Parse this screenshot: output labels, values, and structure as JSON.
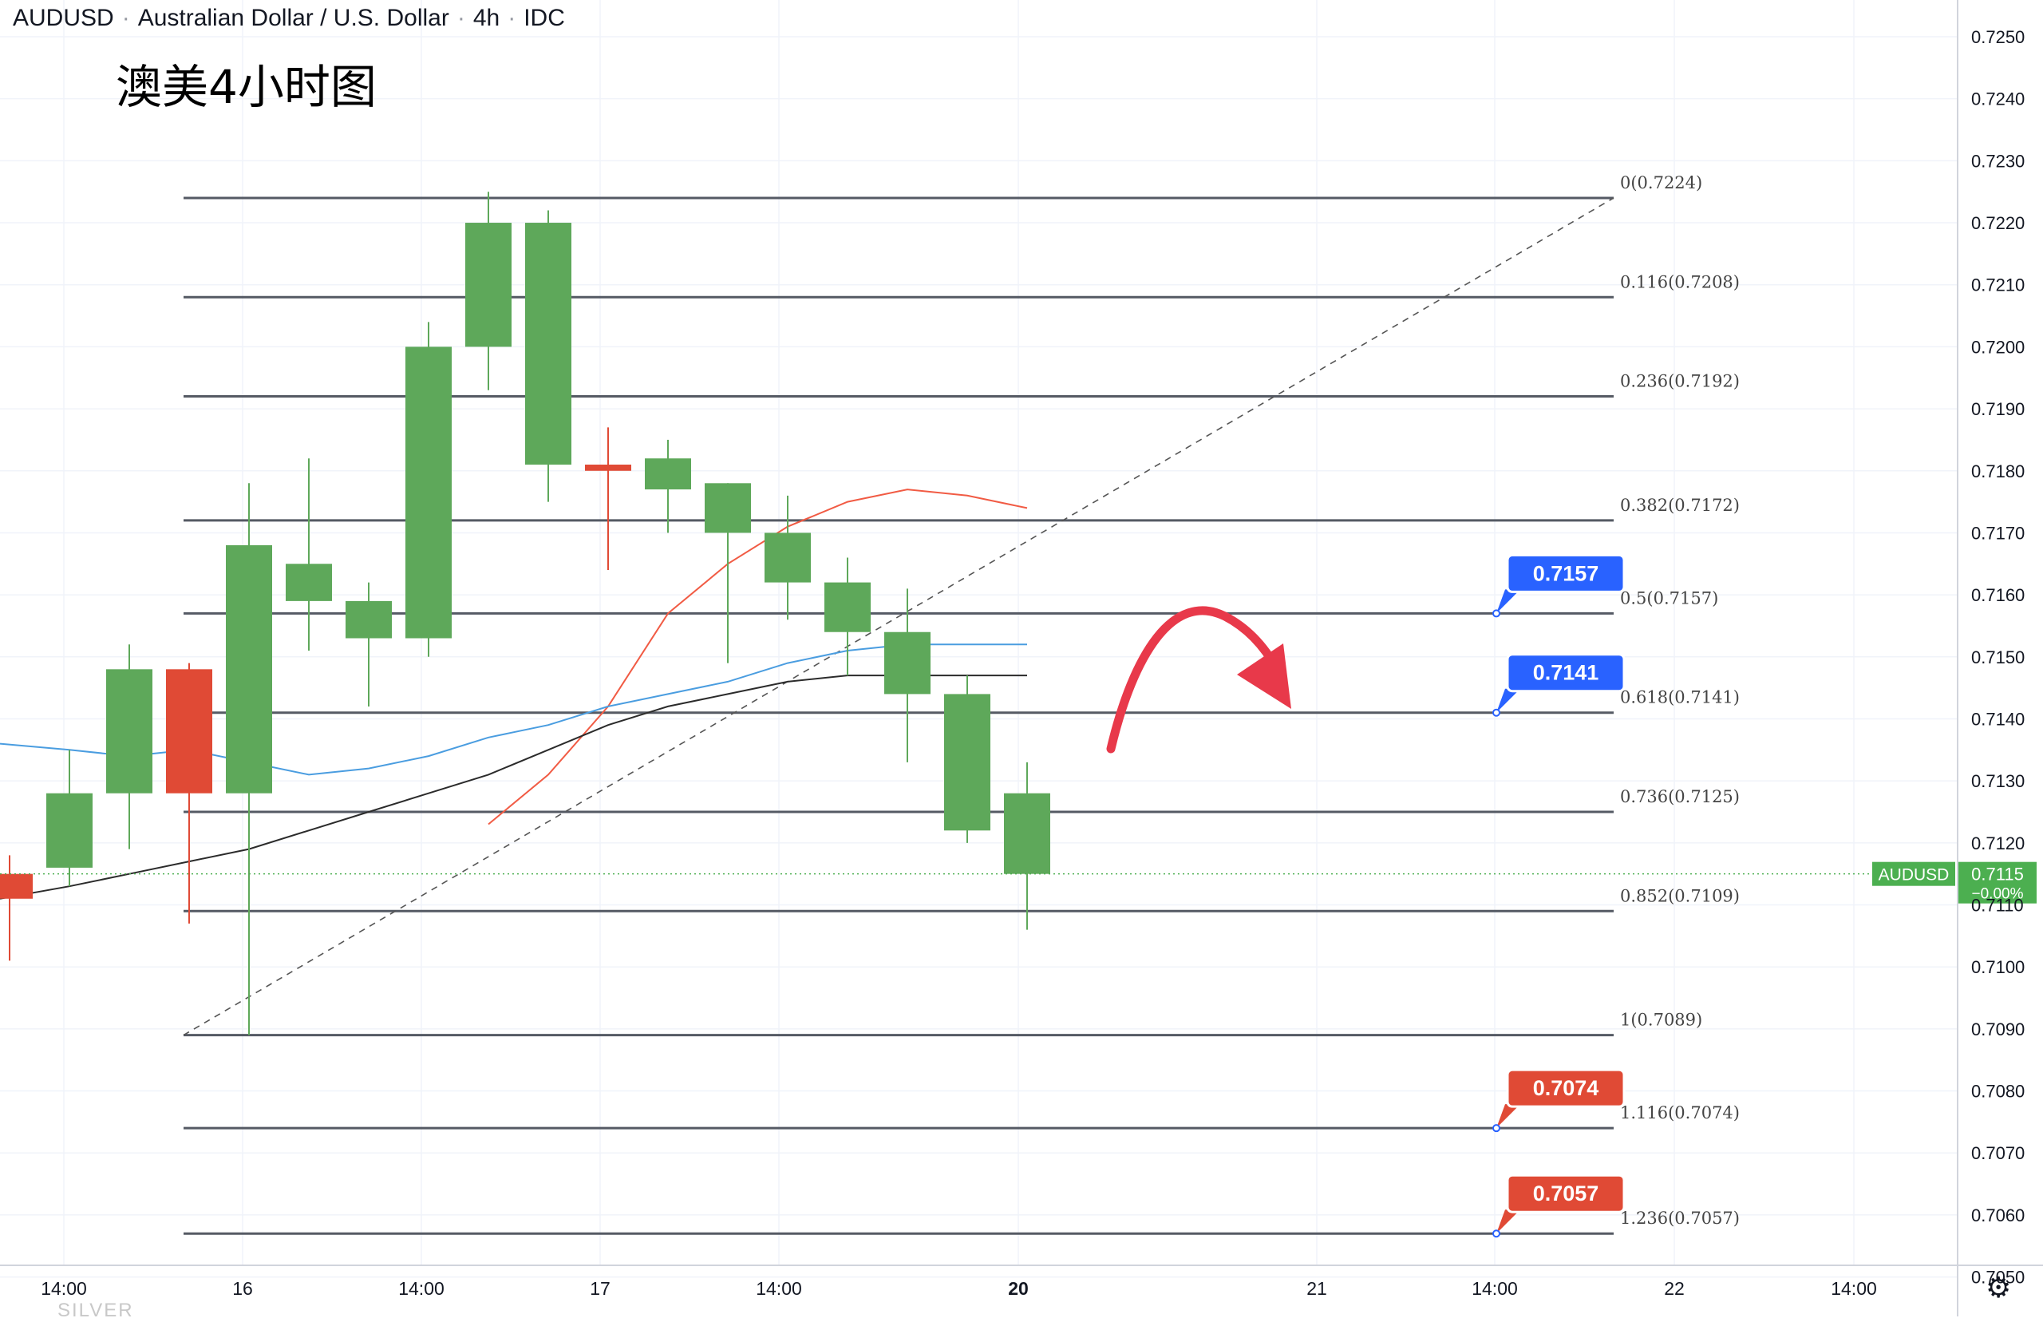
{
  "header": {
    "symbol": "AUDUSD",
    "name": "Australian Dollar / U.S. Dollar",
    "timeframe": "4h",
    "source": "IDC"
  },
  "annotation_text": "澳美4小时图",
  "watermark": "SILVER",
  "settings_icon": "gear-icon",
  "chart_data": {
    "type": "candlestick",
    "title": "AUDUSD · Australian Dollar / U.S. Dollar · 4h · IDC",
    "ylim": [
      0.7048,
      0.7253
    ],
    "y_ticks": [
      "0.7250",
      "0.7240",
      "0.7230",
      "0.7220",
      "0.7210",
      "0.7200",
      "0.7190",
      "0.7180",
      "0.7170",
      "0.7160",
      "0.7150",
      "0.7140",
      "0.7130",
      "0.7120",
      "0.7110",
      "0.7100",
      "0.7090",
      "0.7080",
      "0.7070",
      "0.7060",
      "0.7050"
    ],
    "x_ticks": [
      "14:00",
      "16",
      "14:00",
      "17",
      "14:00",
      "20",
      "21",
      "14:00",
      "22",
      "14:00"
    ],
    "bold_x_ticks": [
      "20"
    ],
    "candles": [
      {
        "o": 0.7115,
        "h": 0.7118,
        "l": 0.7101,
        "c": 0.7111
      },
      {
        "o": 0.7116,
        "h": 0.7135,
        "l": 0.7113,
        "c": 0.7128
      },
      {
        "o": 0.7128,
        "h": 0.7152,
        "l": 0.7119,
        "c": 0.7148
      },
      {
        "o": 0.7148,
        "h": 0.7149,
        "l": 0.7107,
        "c": 0.7128
      },
      {
        "o": 0.7128,
        "h": 0.7178,
        "l": 0.7089,
        "c": 0.7168
      },
      {
        "o": 0.7159,
        "h": 0.7182,
        "l": 0.7151,
        "c": 0.7165
      },
      {
        "o": 0.7153,
        "h": 0.7162,
        "l": 0.7142,
        "c": 0.7159
      },
      {
        "o": 0.7153,
        "h": 0.7204,
        "l": 0.715,
        "c": 0.72
      },
      {
        "o": 0.72,
        "h": 0.7225,
        "l": 0.7193,
        "c": 0.722
      },
      {
        "o": 0.7181,
        "h": 0.7222,
        "l": 0.7175,
        "c": 0.722
      },
      {
        "o": 0.7181,
        "h": 0.7187,
        "l": 0.7164,
        "c": 0.718
      },
      {
        "o": 0.7177,
        "h": 0.7185,
        "l": 0.717,
        "c": 0.7182
      },
      {
        "o": 0.717,
        "h": 0.7178,
        "l": 0.7149,
        "c": 0.7178
      },
      {
        "o": 0.7162,
        "h": 0.7176,
        "l": 0.7156,
        "c": 0.717
      },
      {
        "o": 0.7154,
        "h": 0.7166,
        "l": 0.7147,
        "c": 0.7162
      },
      {
        "o": 0.7144,
        "h": 0.7161,
        "l": 0.7133,
        "c": 0.7154
      },
      {
        "o": 0.7122,
        "h": 0.7147,
        "l": 0.712,
        "c": 0.7144
      },
      {
        "o": 0.7115,
        "h": 0.7133,
        "l": 0.7106,
        "c": 0.7128
      }
    ],
    "ma_lines": [
      {
        "color": "#f15b44",
        "values": [
          null,
          null,
          null,
          null,
          null,
          null,
          null,
          null,
          0.7123,
          0.7131,
          0.7142,
          0.7157,
          0.7165,
          0.7171,
          0.7175,
          0.7177,
          0.7176,
          0.7174
        ]
      },
      {
        "color": "#4a9de0",
        "values": [
          0.7136,
          0.7135,
          0.7134,
          0.7135,
          0.7133,
          0.7131,
          0.7132,
          0.7134,
          0.7137,
          0.7139,
          0.7142,
          0.7144,
          0.7146,
          0.7149,
          0.7151,
          0.7152,
          0.7152,
          0.7152
        ]
      },
      {
        "color": "#2b2b2b",
        "values": [
          0.7111,
          0.7113,
          0.7115,
          0.7117,
          0.7119,
          0.7122,
          0.7125,
          0.7128,
          0.7131,
          0.7135,
          0.7139,
          0.7142,
          0.7144,
          0.7146,
          0.7147,
          0.7147,
          0.7147,
          0.7147
        ]
      }
    ],
    "fibonacci": [
      {
        "label": "0(0.7224)",
        "price": 0.7224
      },
      {
        "label": "0.116(0.7208)",
        "price": 0.7208
      },
      {
        "label": "0.236(0.7192)",
        "price": 0.7192
      },
      {
        "label": "0.382(0.7172)",
        "price": 0.7172
      },
      {
        "label": "0.5(0.7157)",
        "price": 0.7157
      },
      {
        "label": "0.618(0.7141)",
        "price": 0.7141
      },
      {
        "label": "0.736(0.7125)",
        "price": 0.7125
      },
      {
        "label": "0.852(0.7109)",
        "price": 0.7109
      },
      {
        "label": "1(0.7089)",
        "price": 0.7089
      },
      {
        "label": "1.116(0.7074)",
        "price": 0.7074
      },
      {
        "label": "1.236(0.7057)",
        "price": 0.7057
      }
    ],
    "price_callouts": [
      {
        "text": "0.7157",
        "price": 0.7157,
        "color": "#2962ff"
      },
      {
        "text": "0.7141",
        "price": 0.7141,
        "color": "#2962ff"
      },
      {
        "text": "0.7074",
        "price": 0.7074,
        "color": "#e04a35"
      },
      {
        "text": "0.7057",
        "price": 0.7057,
        "color": "#e04a35"
      }
    ],
    "last_price": {
      "symbol": "AUDUSD",
      "value": "0.7115",
      "change": "−0.00%",
      "price": 0.7115
    },
    "colors": {
      "up": "#5ea85a",
      "down": "#e04a35",
      "grid": "#f0f3fa",
      "fib": "#555a64",
      "last": "#4caf50",
      "arrow": "#e8394a"
    }
  }
}
